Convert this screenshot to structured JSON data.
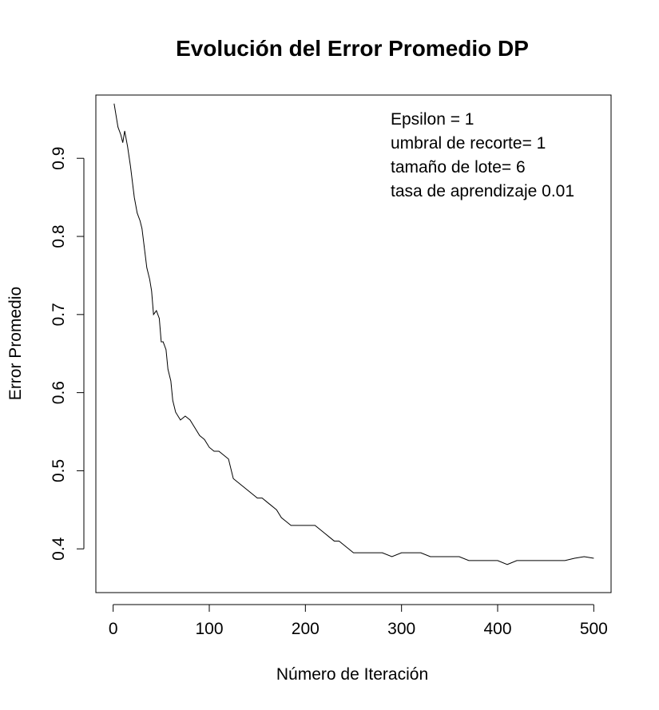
{
  "chart_data": {
    "type": "line",
    "title": "Evolución del Error Promedio DP",
    "xlabel": "Número de Iteración",
    "ylabel": "Error Promedio",
    "xlim": [
      -18,
      518
    ],
    "ylim": [
      0.344,
      0.981
    ],
    "xticks": [
      0,
      100,
      200,
      300,
      400,
      500
    ],
    "yticks": [
      0.4,
      0.5,
      0.6,
      0.7,
      0.8,
      0.9
    ],
    "xtick_labels": [
      "0",
      "100",
      "200",
      "300",
      "400",
      "500"
    ],
    "ytick_labels": [
      "0.4",
      "0.5",
      "0.6",
      "0.7",
      "0.8",
      "0.9"
    ],
    "grid": false,
    "legend_position": "top-right",
    "annotations": [
      "Epsilon = 1",
      "umbral de recorte= 1",
      "tamaño de lote= 6",
      "tasa de aprendizaje 0.01"
    ],
    "series": [
      {
        "color": "#000000",
        "x": [
          1,
          3,
          5,
          8,
          10,
          12,
          15,
          18,
          20,
          22,
          25,
          28,
          30,
          33,
          35,
          38,
          40,
          42,
          45,
          48,
          50,
          52,
          55,
          57,
          60,
          62,
          65,
          70,
          75,
          80,
          85,
          90,
          95,
          100,
          105,
          110,
          115,
          120,
          125,
          130,
          135,
          140,
          145,
          150,
          155,
          160,
          165,
          170,
          175,
          180,
          185,
          190,
          195,
          200,
          205,
          210,
          215,
          220,
          225,
          230,
          235,
          240,
          245,
          250,
          260,
          270,
          280,
          290,
          300,
          310,
          320,
          330,
          340,
          350,
          360,
          370,
          380,
          390,
          400,
          410,
          420,
          430,
          440,
          450,
          460,
          470,
          480,
          490,
          500
        ],
        "y": [
          0.97,
          0.955,
          0.94,
          0.93,
          0.92,
          0.935,
          0.915,
          0.89,
          0.87,
          0.85,
          0.83,
          0.82,
          0.81,
          0.78,
          0.76,
          0.745,
          0.73,
          0.7,
          0.705,
          0.695,
          0.665,
          0.665,
          0.655,
          0.63,
          0.615,
          0.59,
          0.575,
          0.565,
          0.57,
          0.565,
          0.555,
          0.545,
          0.54,
          0.53,
          0.525,
          0.525,
          0.52,
          0.515,
          0.49,
          0.485,
          0.48,
          0.475,
          0.47,
          0.465,
          0.465,
          0.46,
          0.455,
          0.45,
          0.44,
          0.435,
          0.43,
          0.43,
          0.43,
          0.43,
          0.43,
          0.43,
          0.425,
          0.42,
          0.415,
          0.41,
          0.41,
          0.405,
          0.4,
          0.395,
          0.395,
          0.395,
          0.395,
          0.39,
          0.395,
          0.395,
          0.395,
          0.39,
          0.39,
          0.39,
          0.39,
          0.385,
          0.385,
          0.385,
          0.385,
          0.38,
          0.385,
          0.385,
          0.385,
          0.385,
          0.385,
          0.385,
          0.388,
          0.39,
          0.388
        ]
      }
    ]
  }
}
